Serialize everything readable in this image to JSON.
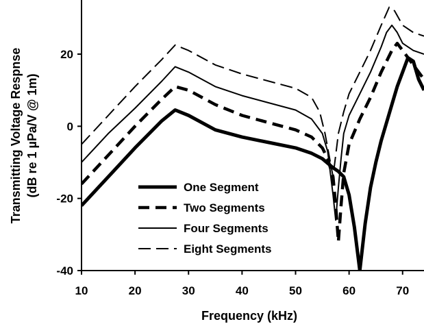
{
  "chart_data": {
    "type": "line",
    "xlabel": "Frequency (kHz)",
    "ylabel_lines": [
      "Transmitting Voltage Respnse",
      "(dB re 1 µPa/V @ 1m)"
    ],
    "xlim": [
      10,
      74
    ],
    "ylim": [
      -40,
      35
    ],
    "x_ticks": [
      10,
      20,
      30,
      40,
      50,
      60,
      70
    ],
    "y_ticks": [
      -40,
      -20,
      0,
      20
    ],
    "legend_position": "lower-left",
    "series": [
      {
        "name": "One Segment",
        "style": "thick-solid",
        "points": [
          [
            10,
            -22
          ],
          [
            15,
            -14
          ],
          [
            20,
            -6
          ],
          [
            25,
            1.5
          ],
          [
            27.5,
            4.5
          ],
          [
            30,
            3
          ],
          [
            35,
            -1
          ],
          [
            40,
            -3
          ],
          [
            45,
            -4.5
          ],
          [
            50,
            -6
          ],
          [
            53,
            -7.5
          ],
          [
            55,
            -9
          ],
          [
            57,
            -11.5
          ],
          [
            58,
            -12.5
          ],
          [
            59,
            -14
          ],
          [
            60,
            -19
          ],
          [
            61,
            -28
          ],
          [
            62,
            -40
          ],
          [
            63,
            -27
          ],
          [
            64,
            -17
          ],
          [
            65,
            -10
          ],
          [
            66,
            -4
          ],
          [
            67,
            1
          ],
          [
            68,
            6
          ],
          [
            69,
            11
          ],
          [
            70,
            15
          ],
          [
            71,
            19
          ],
          [
            72,
            18
          ],
          [
            73,
            13
          ],
          [
            74,
            10
          ]
        ]
      },
      {
        "name": "Two Segments",
        "style": "thick-dashed",
        "points": [
          [
            10,
            -16
          ],
          [
            15,
            -8
          ],
          [
            20,
            0
          ],
          [
            25,
            7.5
          ],
          [
            27.5,
            11
          ],
          [
            30,
            10
          ],
          [
            35,
            6
          ],
          [
            40,
            3
          ],
          [
            45,
            1
          ],
          [
            50,
            -1
          ],
          [
            53,
            -3
          ],
          [
            55,
            -6
          ],
          [
            56,
            -9
          ],
          [
            57,
            -14
          ],
          [
            57.5,
            -22
          ],
          [
            58,
            -32
          ],
          [
            58.5,
            -22
          ],
          [
            59,
            -13
          ],
          [
            60,
            -5
          ],
          [
            62,
            2
          ],
          [
            64,
            8
          ],
          [
            66,
            15
          ],
          [
            68,
            21
          ],
          [
            69,
            23
          ],
          [
            70,
            21
          ],
          [
            72,
            17
          ],
          [
            74,
            13
          ]
        ]
      },
      {
        "name": "Four Segments",
        "style": "thin-solid",
        "points": [
          [
            10,
            -10
          ],
          [
            15,
            -2
          ],
          [
            20,
            5
          ],
          [
            25,
            12.5
          ],
          [
            27.5,
            16.5
          ],
          [
            30,
            15
          ],
          [
            35,
            11
          ],
          [
            40,
            8.5
          ],
          [
            45,
            6.5
          ],
          [
            50,
            4.5
          ],
          [
            53,
            2
          ],
          [
            55,
            -2
          ],
          [
            56,
            -7
          ],
          [
            56.5,
            -13
          ],
          [
            57,
            -19
          ],
          [
            57.5,
            -26
          ],
          [
            58,
            -17
          ],
          [
            58.5,
            -9
          ],
          [
            59,
            -2
          ],
          [
            60,
            3
          ],
          [
            62,
            9
          ],
          [
            64,
            15
          ],
          [
            66,
            22
          ],
          [
            67,
            26
          ],
          [
            68,
            28
          ],
          [
            69,
            26
          ],
          [
            70,
            23
          ],
          [
            72,
            21
          ],
          [
            74,
            20
          ]
        ]
      },
      {
        "name": "Eight Segments",
        "style": "thin-dashed",
        "points": [
          [
            10,
            -5
          ],
          [
            15,
            3
          ],
          [
            20,
            11
          ],
          [
            25,
            18.5
          ],
          [
            27.5,
            22.5
          ],
          [
            30,
            21
          ],
          [
            35,
            17
          ],
          [
            40,
            14.5
          ],
          [
            45,
            12.5
          ],
          [
            50,
            10.5
          ],
          [
            53,
            8
          ],
          [
            54.5,
            4
          ],
          [
            55.5,
            -2
          ],
          [
            56.5,
            -10
          ],
          [
            57,
            -14
          ],
          [
            57.5,
            -8
          ],
          [
            58,
            -2
          ],
          [
            59,
            4
          ],
          [
            60,
            9
          ],
          [
            62,
            15
          ],
          [
            64,
            21
          ],
          [
            66,
            28
          ],
          [
            67.5,
            33
          ],
          [
            68.5,
            32
          ],
          [
            70,
            28
          ],
          [
            72,
            26
          ],
          [
            74,
            25
          ]
        ]
      }
    ]
  }
}
